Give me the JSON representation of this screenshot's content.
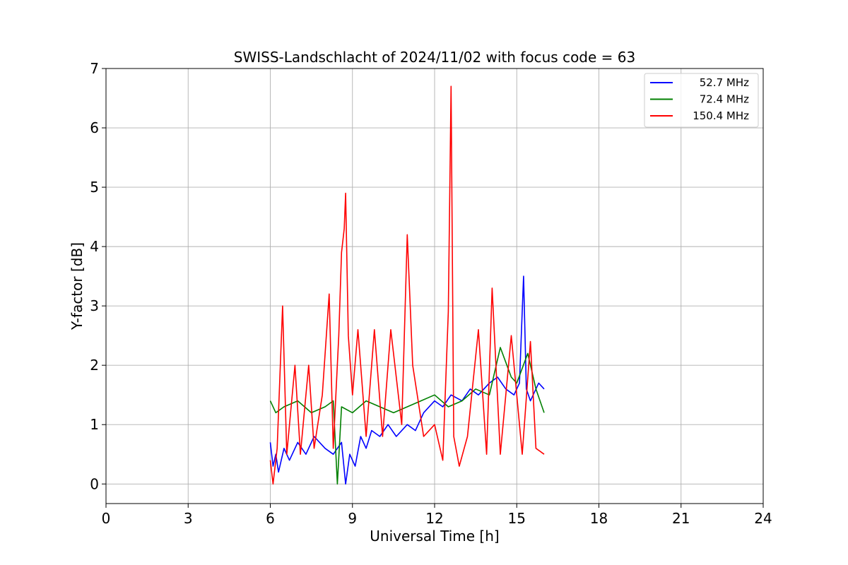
{
  "chart_data": {
    "type": "line",
    "title": "SWISS-Landschlacht of 2024/11/02 with focus code = 63",
    "xlabel": "Universal Time [h]",
    "ylabel": "Y-factor [dB]",
    "xlim": [
      0,
      24
    ],
    "ylim": [
      -0.33,
      7
    ],
    "xticks": [
      0,
      3,
      6,
      9,
      12,
      15,
      18,
      21,
      24
    ],
    "yticks": [
      0,
      1,
      2,
      3,
      4,
      5,
      6,
      7
    ],
    "grid": true,
    "legend_position": "top-right",
    "series": [
      {
        "name": "52.7 MHz",
        "color": "#0000ff",
        "x": [
          6.0,
          6.1,
          6.2,
          6.3,
          6.5,
          6.7,
          7.0,
          7.3,
          7.6,
          8.0,
          8.3,
          8.6,
          8.75,
          8.9,
          9.1,
          9.3,
          9.5,
          9.7,
          10.0,
          10.3,
          10.6,
          11.0,
          11.3,
          11.6,
          12.0,
          12.3,
          12.6,
          13.0,
          13.3,
          13.6,
          14.0,
          14.3,
          14.6,
          14.9,
          15.1,
          15.25,
          15.35,
          15.5,
          15.8,
          16.0
        ],
        "y": [
          0.7,
          0.3,
          0.5,
          0.2,
          0.6,
          0.4,
          0.7,
          0.5,
          0.8,
          0.6,
          0.5,
          0.7,
          0.0,
          0.5,
          0.3,
          0.8,
          0.6,
          0.9,
          0.8,
          1.0,
          0.8,
          1.0,
          0.9,
          1.2,
          1.4,
          1.3,
          1.5,
          1.4,
          1.6,
          1.5,
          1.7,
          1.8,
          1.6,
          1.5,
          1.7,
          3.5,
          1.6,
          1.4,
          1.7,
          1.6
        ]
      },
      {
        "name": "72.4 MHz",
        "color": "#008000",
        "x": [
          6.0,
          6.2,
          6.5,
          7.0,
          7.5,
          8.0,
          8.3,
          8.45,
          8.6,
          9.0,
          9.5,
          10.0,
          10.5,
          11.0,
          11.5,
          12.0,
          12.5,
          13.0,
          13.5,
          14.0,
          14.4,
          14.8,
          15.0,
          15.4,
          15.7,
          16.0
        ],
        "y": [
          1.4,
          1.2,
          1.3,
          1.4,
          1.2,
          1.3,
          1.4,
          0.0,
          1.3,
          1.2,
          1.4,
          1.3,
          1.2,
          1.3,
          1.4,
          1.5,
          1.3,
          1.4,
          1.6,
          1.5,
          2.3,
          1.8,
          1.7,
          2.2,
          1.6,
          1.2
        ]
      },
      {
        "name": "150.4 MHz",
        "color": "#ff0000",
        "x": [
          6.0,
          6.1,
          6.25,
          6.45,
          6.6,
          6.9,
          7.1,
          7.4,
          7.6,
          7.9,
          8.15,
          8.3,
          8.5,
          8.6,
          8.7,
          8.75,
          8.85,
          9.0,
          9.2,
          9.5,
          9.8,
          10.1,
          10.4,
          10.8,
          11.0,
          11.2,
          11.6,
          12.0,
          12.3,
          12.5,
          12.6,
          12.7,
          12.9,
          13.2,
          13.6,
          13.9,
          14.1,
          14.4,
          14.8,
          15.2,
          15.5,
          15.7,
          16.0
        ],
        "y": [
          0.4,
          0.0,
          0.6,
          3.0,
          0.5,
          2.0,
          0.5,
          2.0,
          0.6,
          1.5,
          3.2,
          0.6,
          2.5,
          3.9,
          4.3,
          4.9,
          2.5,
          1.5,
          2.6,
          0.8,
          2.6,
          0.8,
          2.6,
          1.0,
          4.2,
          2.0,
          0.8,
          1.0,
          0.4,
          2.9,
          6.7,
          0.8,
          0.3,
          0.8,
          2.6,
          0.5,
          3.3,
          0.5,
          2.5,
          0.5,
          2.4,
          0.6,
          0.5
        ]
      }
    ]
  }
}
